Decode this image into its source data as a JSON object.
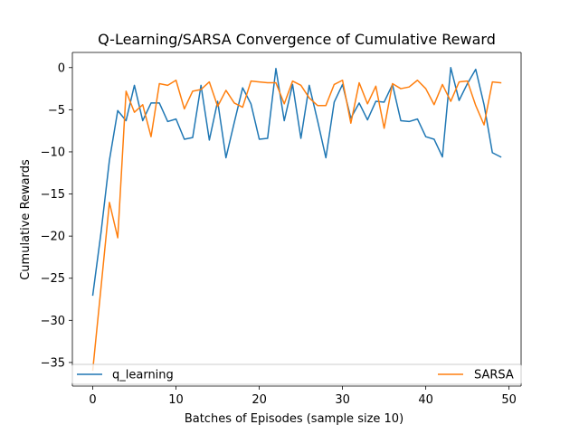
{
  "chart_data": {
    "type": "line",
    "title": "Q-Learning/SARSA Convergence of Cumulative Reward",
    "xlabel": "Batches of Episodes (sample size 10)",
    "ylabel": "Cumulative Rewards",
    "xlim": [
      -2.45,
      51.45
    ],
    "ylim": [
      -37.8,
      1.8
    ],
    "xticks": [
      0,
      10,
      20,
      30,
      40,
      50
    ],
    "yticks": [
      0,
      -5,
      -10,
      -15,
      -20,
      -25,
      -30,
      -35
    ],
    "grid": false,
    "legend_placement": "bottom (full width, two columns)",
    "series": [
      {
        "name": "q_learning",
        "color": "#1f77b4",
        "x": [
          0,
          1,
          2,
          3,
          4,
          5,
          6,
          7,
          8,
          9,
          10,
          11,
          12,
          13,
          14,
          15,
          16,
          17,
          18,
          19,
          20,
          21,
          22,
          23,
          24,
          25,
          26,
          27,
          28,
          29,
          30,
          31,
          32,
          33,
          34,
          35,
          36,
          37,
          38,
          39,
          40,
          41,
          42,
          43,
          44,
          45,
          46,
          47,
          48,
          49
        ],
        "values": [
          -27.0,
          -19.5,
          -11.0,
          -5.1,
          -6.3,
          -2.1,
          -6.3,
          -4.2,
          -4.2,
          -6.4,
          -6.1,
          -8.5,
          -8.3,
          -2.1,
          -8.6,
          -4.0,
          -10.7,
          -6.5,
          -2.4,
          -4.3,
          -8.5,
          -8.4,
          -0.1,
          -6.3,
          -2.0,
          -8.4,
          -2.1,
          -6.3,
          -10.7,
          -4.1,
          -2.0,
          -6.0,
          -4.2,
          -6.2,
          -4.0,
          -4.1,
          -2.0,
          -6.3,
          -6.4,
          -6.1,
          -8.2,
          -8.5,
          -10.6,
          0.0,
          -3.9,
          -1.9,
          -0.2,
          -4.4,
          -10.1,
          -10.6
        ]
      },
      {
        "name": "SARSA",
        "color": "#ff7f0e",
        "x": [
          0,
          1,
          2,
          3,
          4,
          5,
          6,
          7,
          8,
          9,
          10,
          11,
          12,
          13,
          14,
          15,
          16,
          17,
          18,
          19,
          20,
          21,
          22,
          23,
          24,
          25,
          26,
          27,
          28,
          29,
          30,
          31,
          32,
          33,
          34,
          35,
          36,
          37,
          38,
          39,
          40,
          41,
          42,
          43,
          44,
          45,
          46,
          47,
          48,
          49
        ],
        "values": [
          -35.9,
          -26.0,
          -16.0,
          -20.2,
          -2.8,
          -5.3,
          -4.4,
          -8.2,
          -1.9,
          -2.1,
          -1.5,
          -4.9,
          -2.8,
          -2.6,
          -1.7,
          -4.6,
          -2.7,
          -4.2,
          -4.7,
          -1.6,
          -1.7,
          -1.8,
          -1.8,
          -4.3,
          -1.6,
          -2.1,
          -3.6,
          -4.5,
          -4.5,
          -2.0,
          -1.5,
          -6.6,
          -1.8,
          -4.3,
          -2.2,
          -7.2,
          -1.9,
          -2.5,
          -2.3,
          -1.5,
          -2.5,
          -4.4,
          -2.0,
          -4.0,
          -1.7,
          -1.6,
          -4.5,
          -6.8,
          -1.7,
          -1.8
        ]
      }
    ]
  }
}
